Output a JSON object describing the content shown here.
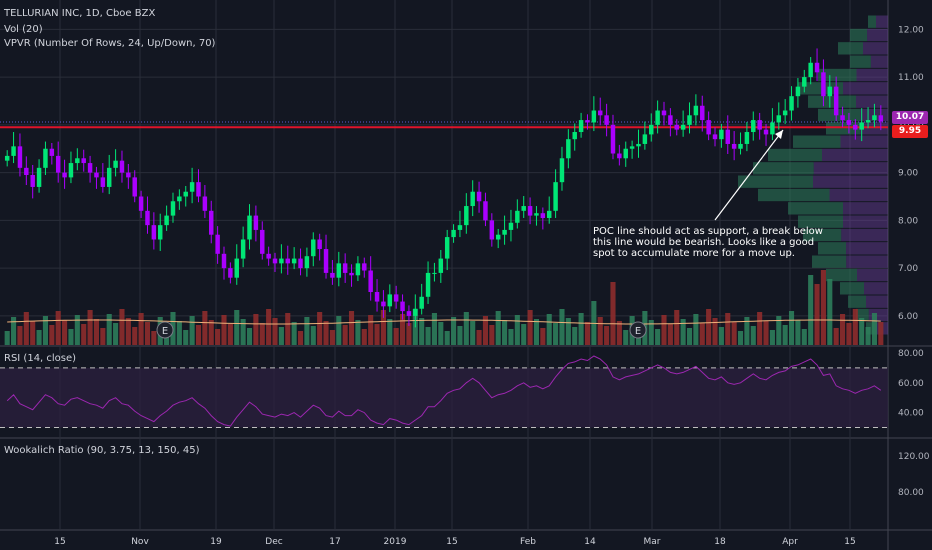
{
  "header": {
    "symbol_line": "TELLURIAN INC, 1D, Cboe BZX",
    "vol_line": "Vol (20)",
    "vpvr_line": "VPVR (Number Of Rows, 24, Up/Down, 70)"
  },
  "rsi_panel": {
    "label": "RSI (14, close)"
  },
  "wookalich_panel": {
    "label": "Wookalich Ratio (90, 3.75, 13, 150, 45)"
  },
  "annotation": {
    "text": "POC line should act as support, a break below\nthis line would be bearish. Looks like a good\nspot to accumulate more for a move up."
  },
  "earnings_marker": "E",
  "price_tags": [
    {
      "text": "10.07",
      "color": "#9c27b0"
    },
    {
      "text": "9.95",
      "color": "#e91e1e"
    }
  ],
  "colors": {
    "up": "#00e676",
    "down": "#aa00ff",
    "vol_up": "#2e7d5b",
    "vol_down": "#8e2c2c",
    "rsi": "#9c27b0",
    "red_line": "#e0142a",
    "blue_line": "#5b5bd6",
    "grid": "#2a2e39"
  },
  "chart_data": [
    {
      "type": "candlestick",
      "title": "TELLURIAN INC, 1D, Cboe BZX",
      "x_ticks": [
        "15",
        "Nov",
        "19",
        "Dec",
        "17",
        "2019",
        "15",
        "Feb",
        "14",
        "Mar",
        "18",
        "Apr",
        "15"
      ],
      "y_ticks": [
        "12.00",
        "11.00",
        "10.00",
        "9.00",
        "8.00",
        "7.00",
        "6.00"
      ],
      "ylim": [
        5.6,
        12.3
      ],
      "grid": true,
      "close": [
        9.35,
        9.55,
        9.1,
        8.95,
        8.7,
        9.1,
        9.5,
        9.35,
        9.0,
        8.9,
        9.2,
        9.3,
        9.2,
        9.0,
        8.9,
        8.7,
        9.1,
        9.25,
        9.0,
        8.9,
        8.5,
        8.2,
        7.9,
        7.6,
        7.9,
        8.1,
        8.4,
        8.5,
        8.6,
        8.8,
        8.5,
        8.2,
        7.7,
        7.3,
        7.0,
        6.8,
        7.2,
        7.6,
        8.1,
        7.8,
        7.3,
        7.2,
        7.1,
        7.2,
        7.1,
        7.2,
        7.0,
        7.25,
        7.6,
        7.4,
        6.9,
        6.8,
        7.1,
        6.9,
        6.85,
        7.1,
        6.95,
        6.5,
        6.3,
        6.2,
        6.45,
        6.3,
        6.1,
        6.0,
        6.15,
        6.4,
        6.9,
        6.9,
        7.2,
        7.65,
        7.8,
        7.9,
        8.3,
        8.6,
        8.4,
        8.0,
        7.6,
        7.7,
        7.8,
        7.95,
        8.2,
        8.3,
        8.1,
        8.15,
        8.05,
        8.2,
        8.8,
        9.3,
        9.7,
        9.85,
        10.1,
        10.05,
        10.3,
        10.2,
        10.0,
        9.4,
        9.3,
        9.5,
        9.55,
        9.6,
        9.8,
        10.0,
        10.3,
        10.2,
        10.0,
        9.9,
        10.0,
        10.2,
        10.4,
        10.1,
        9.8,
        9.7,
        9.9,
        9.6,
        9.5,
        9.6,
        9.85,
        10.1,
        9.9,
        9.8,
        10.05,
        10.2,
        10.3,
        10.6,
        10.8,
        11.0,
        11.3,
        11.1,
        10.6,
        10.8,
        10.2,
        10.1,
        10.0,
        9.9,
        10.05,
        10.1,
        10.2,
        10.07
      ],
      "series_candles_note": "",
      "rsi": {
        "label": "RSI (14, close)",
        "y_ticks": [
          "80.00",
          "60.00",
          "40.00"
        ],
        "ylim": [
          25,
          80
        ],
        "upper_band": 70,
        "lower_band": 30,
        "values": [
          48,
          52,
          46,
          44,
          42,
          47,
          52,
          50,
          46,
          45,
          49,
          50,
          48,
          46,
          45,
          43,
          48,
          50,
          46,
          45,
          41,
          38,
          36,
          34,
          38,
          41,
          45,
          47,
          48,
          50,
          46,
          43,
          38,
          34,
          32,
          31,
          37,
          42,
          47,
          44,
          39,
          38,
          37,
          39,
          38,
          40,
          37,
          41,
          45,
          43,
          38,
          37,
          41,
          38,
          38,
          42,
          40,
          35,
          33,
          32,
          36,
          35,
          33,
          32,
          35,
          38,
          44,
          44,
          48,
          53,
          55,
          56,
          60,
          63,
          60,
          55,
          50,
          52,
          53,
          55,
          58,
          60,
          57,
          58,
          56,
          58,
          64,
          69,
          73,
          74,
          76,
          75,
          78,
          76,
          72,
          64,
          62,
          64,
          65,
          66,
          68,
          70,
          72,
          70,
          67,
          66,
          67,
          69,
          71,
          67,
          63,
          62,
          64,
          60,
          59,
          60,
          63,
          66,
          63,
          62,
          65,
          67,
          68,
          71,
          72,
          74,
          76,
          72,
          65,
          66,
          58,
          56,
          55,
          53,
          55,
          56,
          58,
          55
        ]
      },
      "wookalich": {
        "label": "Wookalich Ratio (90, 3.75, 13, 150, 45)",
        "y_ticks": [
          "120.00",
          "80.00"
        ]
      }
    }
  ]
}
